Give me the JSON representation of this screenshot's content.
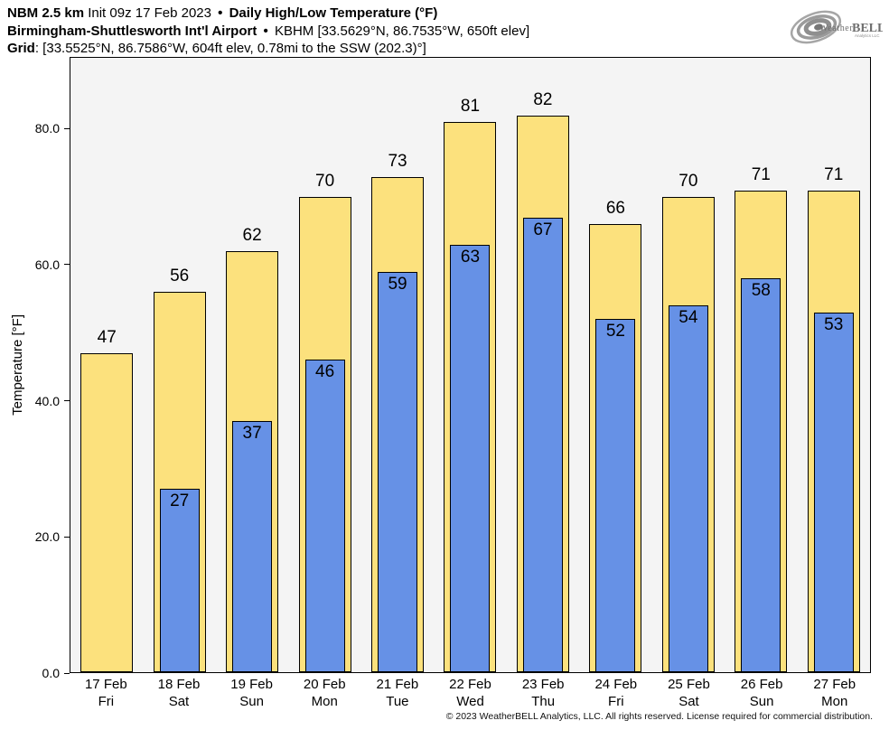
{
  "header": {
    "model": "NBM 2.5 km",
    "init": "Init 09z 17 Feb 2023",
    "sep": "•",
    "product": "Daily High/Low Temperature (°F)",
    "station": "Birmingham-Shuttlesworth Int'l Airport",
    "station_info": "KBHM [33.5629°N, 86.7535°W, 650ft elev]",
    "grid_label": "Grid",
    "grid_info": ": [33.5525°N, 86.7586°W, 604ft elev, 0.78mi to the SSW (202.3)°]"
  },
  "logo": {
    "weather": "Weather",
    "bell": "BELL",
    "sub": "Analytics LLC"
  },
  "chart_data": {
    "type": "bar",
    "title": "Daily High/Low Temperature (°F)",
    "xlabel": "",
    "ylabel": "Temperature [°F]",
    "categories": [
      "17 Feb",
      "18 Feb",
      "19 Feb",
      "20 Feb",
      "21 Feb",
      "22 Feb",
      "23 Feb",
      "24 Feb",
      "25 Feb",
      "26 Feb",
      "27 Feb"
    ],
    "weekdays": [
      "Fri",
      "Sat",
      "Sun",
      "Mon",
      "Tue",
      "Wed",
      "Thu",
      "Fri",
      "Sat",
      "Sun",
      "Mon"
    ],
    "series": [
      {
        "name": "High",
        "color": "#fce17d",
        "values": [
          47,
          56,
          62,
          70,
          73,
          81,
          82,
          66,
          70,
          71,
          71
        ]
      },
      {
        "name": "Low",
        "color": "#6691e6",
        "values": [
          null,
          27,
          37,
          46,
          59,
          63,
          67,
          52,
          54,
          58,
          53
        ]
      }
    ],
    "ylim": [
      0,
      90.5
    ],
    "yticks": [
      0,
      20,
      40,
      60,
      80
    ],
    "ytick_labels": [
      "0.0",
      "20.0",
      "40.0",
      "60.0",
      "80.0"
    ],
    "grid": false,
    "legend_position": "none",
    "plot_bg": "#f4f4f4",
    "bar_edge": "#000000"
  },
  "footer": {
    "copyright": "© 2023 WeatherBELL Analytics, LLC. All rights reserved. License required for commercial distribution."
  }
}
